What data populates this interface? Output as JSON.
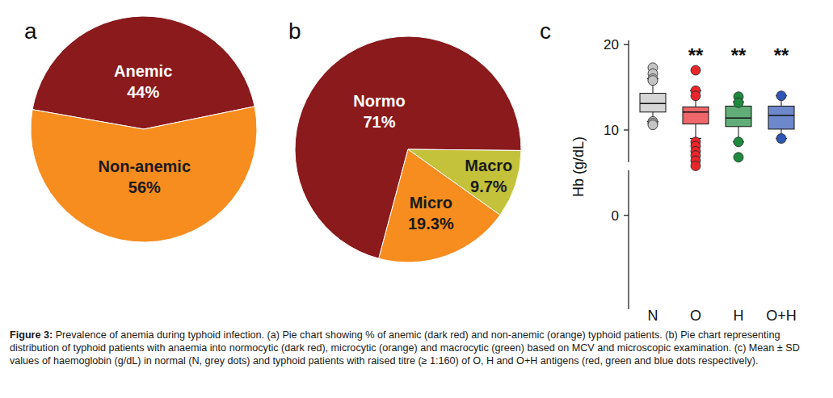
{
  "chart_data": [
    {
      "type": "pie",
      "title": "a",
      "categories": [
        "Anemic",
        "Non-anemic"
      ],
      "values": [
        44,
        56
      ],
      "value_labels": [
        "44%",
        "56%"
      ],
      "colors": [
        "#8a1a1c",
        "#f78c1f"
      ],
      "data_labels": true
    },
    {
      "type": "pie",
      "title": "b",
      "categories": [
        "Normo",
        "Macro",
        "Micro"
      ],
      "values": [
        71,
        9.7,
        19.3
      ],
      "value_labels": [
        "71%",
        "9.7%",
        "19.3%"
      ],
      "colors": [
        "#8a1a1c",
        "#c4c23a",
        "#f78c1f"
      ],
      "data_labels": true
    },
    {
      "type": "box",
      "title": "c",
      "y_label": "Hb (g/dL)",
      "categories": [
        "N",
        "O",
        "H",
        "O+H"
      ],
      "boxes": [
        {
          "whislo": 11.0,
          "q1": 12.1,
          "med": 13.1,
          "q3": 14.3,
          "whishi": 16.0,
          "fliers": [
            17.3,
            16.6,
            16.0,
            15.8,
            11.0,
            10.8,
            10.6
          ]
        },
        {
          "whislo": 9.0,
          "q1": 10.7,
          "med": 12.1,
          "q3": 12.7,
          "whishi": 14.6,
          "fliers": [
            17.0,
            14.6,
            14.0,
            8.6,
            8.1,
            7.5,
            7.0,
            6.4,
            5.8
          ]
        },
        {
          "whislo": 8.6,
          "q1": 10.4,
          "med": 11.4,
          "q3": 12.8,
          "whishi": 13.3,
          "fliers": [
            13.9,
            13.2,
            8.6,
            6.8
          ]
        },
        {
          "whislo": 9.0,
          "q1": 10.1,
          "med": 11.7,
          "q3": 12.8,
          "whishi": 14.0,
          "fliers": [
            14.0,
            9.0
          ]
        }
      ],
      "significance": [
        null,
        "**",
        "**",
        "**"
      ],
      "colors": [
        "#c4c4c4",
        "#e8262b",
        "#1e8a3e",
        "#2f55b5"
      ],
      "ylim": [
        -11,
        20.5
      ],
      "yticks": [
        0,
        10,
        20
      ]
    }
  ],
  "caption": {
    "label": "Figure 3:",
    "text": "Prevalence of anemia during typhoid infection. (a) Pie chart showing % of anemic (dark red) and non-anemic (orange) typhoid patients. (b) Pie chart representing distribution of typhoid patients with anaemia into normocytic (dark red), microcytic (orange) and macrocytic (green) based on MCV and microscopic examination. (c) Mean ± SD values of haemoglobin (g/dL) in normal (N, grey dots) and typhoid patients with raised titre (≥ 1:160) of O, H and O+H antigens (red, green and blue dots respectively)."
  }
}
